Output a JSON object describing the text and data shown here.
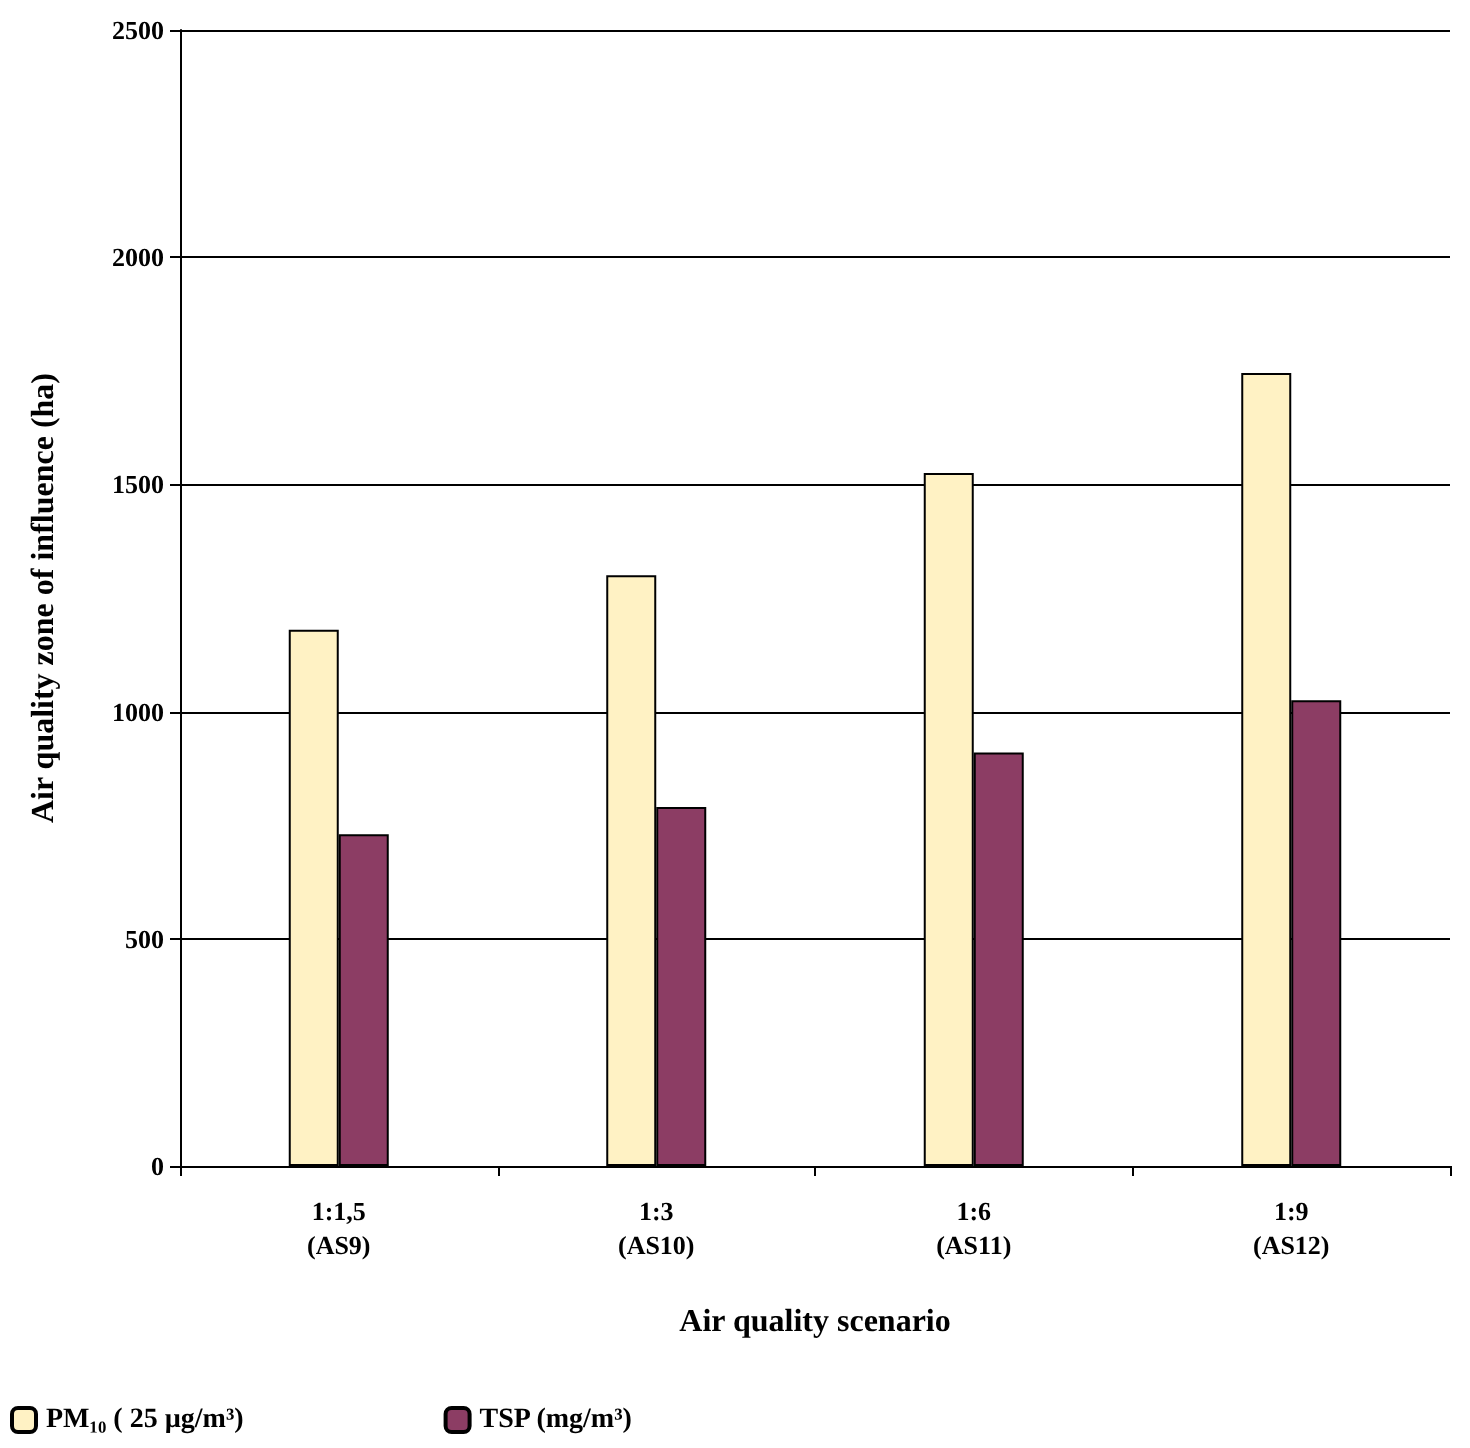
{
  "chart_data": {
    "type": "bar",
    "xlabel": "Air quality scenario",
    "ylabel": "Air quality zone of influence (ha)",
    "categories": [
      "1:1,5\n(AS9)",
      "1:3\n(AS10)",
      "1:6\n(AS11)",
      "1:9\n(AS12)"
    ],
    "series": [
      {
        "name": "PM₁₀ ( 25 µg/m³)",
        "color": "#fff2c4",
        "values": [
          1180,
          1300,
          1525,
          1745
        ]
      },
      {
        "name": "TSP (mg/m³)",
        "color": "#8c3d64",
        "values": [
          730,
          790,
          910,
          1025
        ]
      }
    ],
    "ylim": [
      0,
      2500
    ],
    "yticks": [
      0,
      500,
      1000,
      1500,
      2000,
      2500
    ],
    "grid": "y",
    "legend": "bottom left"
  }
}
